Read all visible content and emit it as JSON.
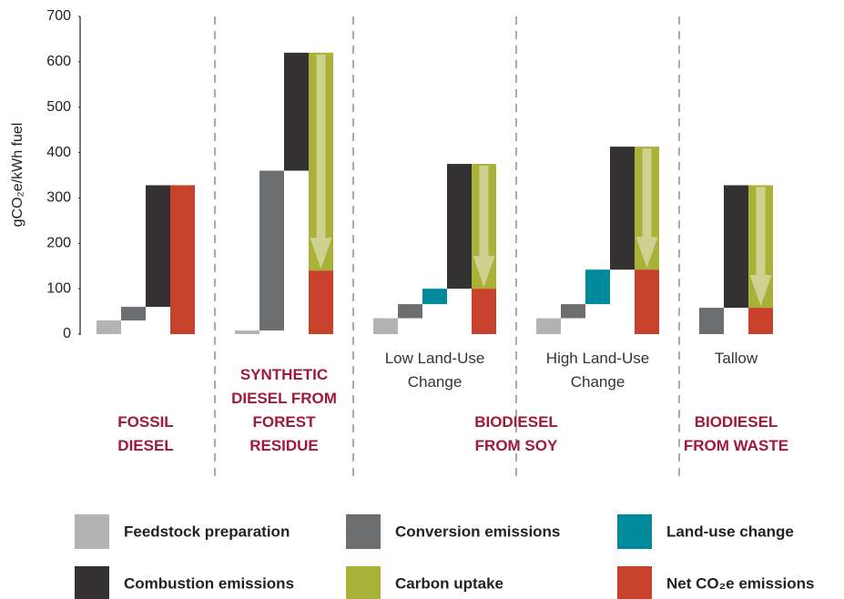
{
  "chart_data": {
    "type": "waterfall",
    "ylabel": "gCO₂e/kWh fuel",
    "ylim": [
      0,
      700
    ],
    "yticks": [
      0,
      100,
      200,
      300,
      400,
      500,
      600,
      700
    ],
    "groups": [
      "FOSSIL DIESEL",
      "SYNTHETIC DIESEL FROM FOREST RESIDUE",
      "BIODIESEL FROM SOY",
      null,
      "BIODIESEL FROM WASTE"
    ],
    "categories": [
      null,
      null,
      "Low Land-Use Change",
      "High Land-Use Change",
      "Tallow"
    ],
    "series": [
      {
        "name": "Feedstock preparation",
        "color": "#b3b3b3",
        "values": [
          30,
          8,
          35,
          35,
          null
        ]
      },
      {
        "name": "Conversion emissions",
        "color": "#6d6e70",
        "values": [
          30,
          352,
          31,
          31,
          58
        ]
      },
      {
        "name": "Land-use change",
        "color": "#00899a",
        "values": [
          null,
          null,
          34,
          76,
          null
        ]
      },
      {
        "name": "Combustion emissions",
        "color": "#333132",
        "values": [
          268,
          260,
          275,
          271,
          270
        ]
      },
      {
        "name": "Carbon uptake",
        "color": "#a9b137",
        "values": [
          null,
          -480,
          -275,
          -271,
          -270
        ]
      },
      {
        "name": "Net CO₂e emissions",
        "color": "#c8412b",
        "values": [
          328,
          140,
          100,
          142,
          58
        ]
      }
    ]
  }
}
